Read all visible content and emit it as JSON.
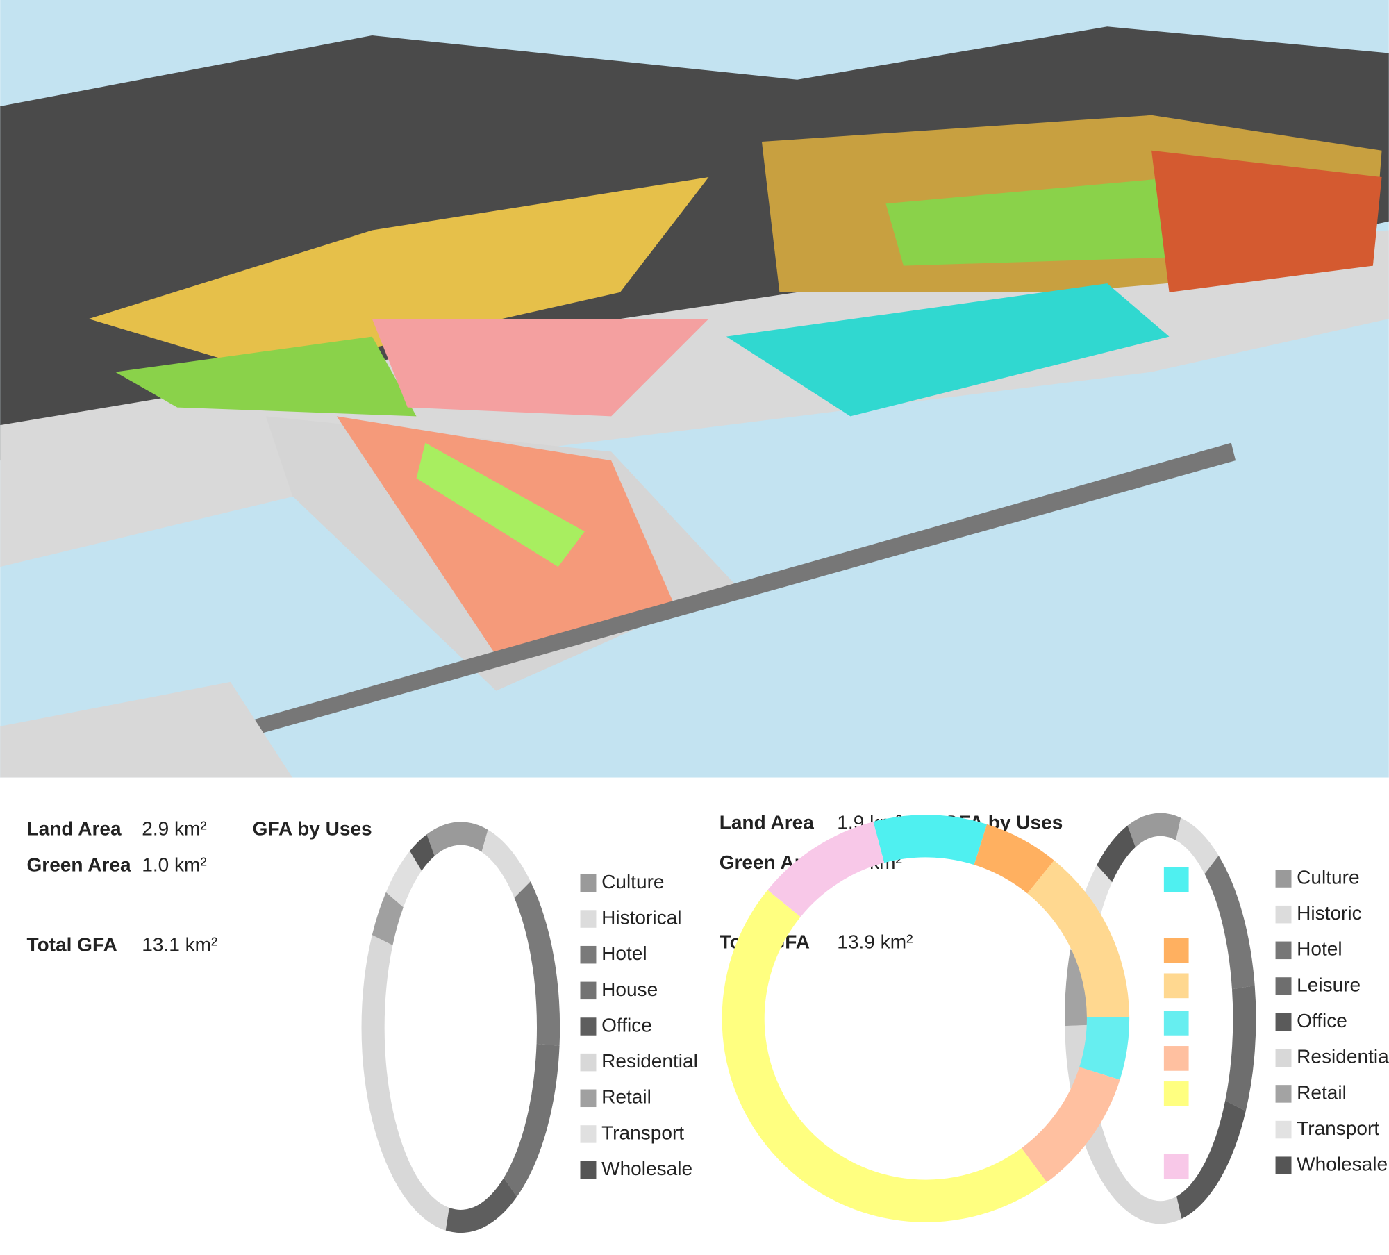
{
  "panels": [
    {
      "stats": [
        {
          "label": "Land Area",
          "value": "2.9 km²"
        },
        {
          "label": "Green Area",
          "value": "1.0 km²"
        },
        {
          "label": "Total GFA",
          "value": "13.1 km²"
        }
      ]
    },
    {
      "stats": [
        {
          "label": "Land Area",
          "value": "1.9 km²"
        },
        {
          "label": "Green Area",
          "value": "1.2 km²"
        },
        {
          "label": "Total GFA",
          "value": "13.9 km²"
        }
      ]
    }
  ],
  "chart_data": [
    {
      "type": "pie",
      "title": "GFA by Uses",
      "categories": [
        "Culture",
        "Historical",
        "Hotel",
        "House",
        "Office",
        "Residential",
        "Retail",
        "Transport",
        "Wholesale"
      ],
      "values": [
        10,
        8,
        14,
        14,
        12,
        30,
        4,
        5,
        3
      ],
      "colors": [
        "#9a9a9a",
        "#dcdcdc",
        "#7a7a7a",
        "#737373",
        "#5e5e5e",
        "#d8d8d8",
        "#a0a0a0",
        "#e0e0e0",
        "#555555"
      ]
    },
    {
      "type": "pie",
      "title": "GFA by Uses",
      "categories": [
        "Culture",
        "Historic",
        "Hotel",
        "Leisure",
        "Office",
        "Residential",
        "Retail",
        "Transport",
        "Wholesale"
      ],
      "values": [
        9,
        7,
        12,
        10,
        14,
        28,
        6,
        8,
        6
      ],
      "colors": [
        "#9a9a9a",
        "#dcdcdc",
        "#777777",
        "#6e6e6e",
        "#5a5a5a",
        "#d8d8d8",
        "#a3a3a3",
        "#e2e2e2",
        "#555555"
      ]
    },
    {
      "type": "pie",
      "categories": [
        null,
        null,
        null,
        null,
        null,
        null,
        null
      ],
      "values": [
        9,
        6,
        14,
        5,
        10,
        46,
        10
      ],
      "colors": [
        "#4ff0f0",
        "#ffb060",
        "#ffd890",
        "#66eef0",
        "#ffc0a0",
        "#ffff80",
        "#f8c8e8"
      ]
    }
  ]
}
